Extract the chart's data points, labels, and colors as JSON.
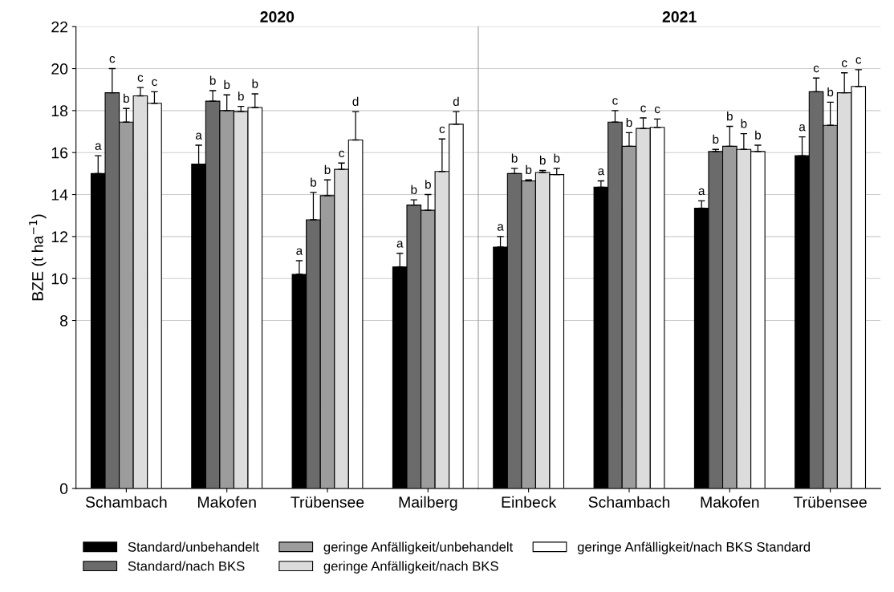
{
  "chart_data": [
    {
      "type": "bar",
      "title": "2020",
      "ylabel": "BZE (t ha$^{−1}$)",
      "categories": [
        "Schambach",
        "Makofen",
        "Trübensee",
        "Mailberg"
      ],
      "series": [
        {
          "name": "Standard/unbehandelt",
          "color": "#000000",
          "values": [
            15.0,
            15.45,
            10.2,
            10.55
          ],
          "errors": [
            [
              15.0,
              15.85
            ],
            [
              15.45,
              16.35
            ],
            [
              10.2,
              10.85
            ],
            [
              10.55,
              11.2
            ]
          ],
          "value_labels": [
            "a",
            "a",
            "a",
            "a"
          ]
        },
        {
          "name": "Standard/nach BKS",
          "color": "#6b6b6b",
          "values": [
            18.85,
            18.45,
            12.8,
            13.5
          ],
          "errors": [
            [
              18.85,
              20.0
            ],
            [
              18.45,
              18.95
            ],
            [
              12.8,
              14.1
            ],
            [
              13.5,
              13.75
            ]
          ],
          "value_labels": [
            "c",
            "b",
            "b",
            "b"
          ]
        },
        {
          "name": "geringe Anfälligkeit/unbehandelt",
          "color": "#9c9c9c",
          "values": [
            17.45,
            18.0,
            13.95,
            13.25
          ],
          "errors": [
            [
              17.45,
              18.1
            ],
            [
              18.0,
              18.75
            ],
            [
              13.95,
              14.7
            ],
            [
              13.25,
              14.0
            ]
          ],
          "value_labels": [
            "b",
            "b",
            "b",
            "b"
          ]
        },
        {
          "name": "geringe Anfälligkeit/nach BKS",
          "color": "#dcdcdc",
          "values": [
            18.7,
            17.95,
            15.2,
            15.1
          ],
          "errors": [
            [
              18.7,
              19.1
            ],
            [
              17.95,
              18.2
            ],
            [
              15.2,
              15.5
            ],
            [
              15.1,
              16.65
            ]
          ],
          "value_labels": [
            "c",
            "b",
            "c",
            "c"
          ]
        },
        {
          "name": "geringe Anfälligkeit/nach BKS Standard",
          "color": "#ffffff",
          "values": [
            18.35,
            18.15,
            16.6,
            17.35
          ],
          "errors": [
            [
              18.35,
              18.9
            ],
            [
              18.15,
              18.8
            ],
            [
              16.6,
              17.95
            ],
            [
              17.35,
              17.95
            ]
          ],
          "value_labels": [
            "c",
            "b",
            "d",
            "d"
          ]
        }
      ],
      "ylim": [
        0,
        22
      ],
      "yticks": [
        0,
        8,
        10,
        12,
        14,
        16,
        18,
        20,
        22
      ],
      "grid": "y",
      "legend": "bottom"
    },
    {
      "type": "bar",
      "title": "2021",
      "categories": [
        "Einbeck",
        "Schambach",
        "Makofen",
        "Trübensee"
      ],
      "series": [
        {
          "color": "#000000",
          "values": [
            11.5,
            14.35,
            13.35,
            15.85
          ],
          "errors": [
            [
              11.5,
              12.0
            ],
            [
              14.35,
              14.65
            ],
            [
              13.35,
              13.7
            ],
            [
              15.85,
              16.75
            ]
          ],
          "value_labels": [
            "a",
            "a",
            "a",
            "a"
          ]
        },
        {
          "color": "#6b6b6b",
          "values": [
            15.0,
            17.45,
            16.05,
            18.9
          ],
          "errors": [
            [
              15.0,
              15.25
            ],
            [
              17.45,
              18.0
            ],
            [
              16.05,
              16.15
            ],
            [
              18.9,
              19.55
            ]
          ],
          "value_labels": [
            "b",
            "c",
            "b",
            "c"
          ]
        },
        {
          "color": "#9c9c9c",
          "values": [
            14.65,
            16.3,
            16.3,
            17.3
          ],
          "errors": [
            [
              14.65,
              14.7
            ],
            [
              16.3,
              16.95
            ],
            [
              16.3,
              17.25
            ],
            [
              17.3,
              18.4
            ]
          ],
          "value_labels": [
            "b",
            "b",
            "b",
            "b"
          ]
        },
        {
          "color": "#dcdcdc",
          "values": [
            15.05,
            17.15,
            16.15,
            18.85
          ],
          "errors": [
            [
              15.05,
              15.15
            ],
            [
              17.15,
              17.65
            ],
            [
              16.15,
              16.9
            ],
            [
              18.85,
              19.8
            ]
          ],
          "value_labels": [
            "b",
            "c",
            "b",
            "c"
          ]
        },
        {
          "color": "#ffffff",
          "values": [
            14.95,
            17.2,
            16.05,
            19.15
          ],
          "errors": [
            [
              14.95,
              15.25
            ],
            [
              17.2,
              17.6
            ],
            [
              16.05,
              16.35
            ],
            [
              19.15,
              19.95
            ]
          ],
          "value_labels": [
            "b",
            "c",
            "b",
            "c"
          ]
        }
      ],
      "ylim": [
        0,
        22
      ],
      "yticks": [
        0,
        8,
        10,
        12,
        14,
        16,
        18,
        20,
        22
      ],
      "grid": "y",
      "tick_labels": "x"
    }
  ]
}
